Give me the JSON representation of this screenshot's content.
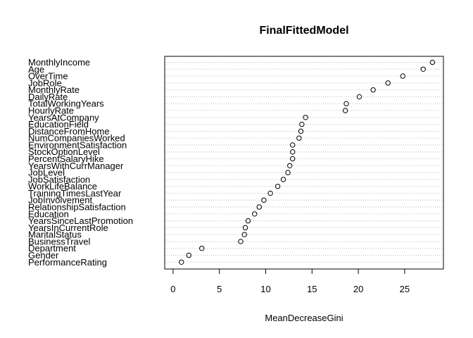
{
  "chart_data": {
    "type": "scatter",
    "title": "FinalFittedModel",
    "xlabel": "MeanDecreaseGini",
    "ylabel": "",
    "xlim": [
      0,
      28.5
    ],
    "xticks": [
      "0",
      "5",
      "10",
      "15",
      "20",
      "25"
    ],
    "grid": "dotted horizontal lines per variable",
    "point_style": "open circle",
    "variables": [
      "MonthlyIncome",
      "Age",
      "OverTime",
      "JobRole",
      "MonthlyRate",
      "DailyRate",
      "TotalWorkingYears",
      "HourlyRate",
      "YearsAtCompany",
      "EducationField",
      "DistanceFromHome",
      "NumCompaniesWorked",
      "EnvironmentSatisfaction",
      "StockOptionLevel",
      "PercentSalaryHike",
      "YearsWithCurrManager",
      "JobLevel",
      "JobSatisfaction",
      "WorkLifeBalance",
      "TrainingTimesLastYear",
      "JobInvolvement",
      "RelationshipSatisfaction",
      "Education",
      "YearsSinceLastPromotion",
      "YearsInCurrentRole",
      "MaritalStatus",
      "BusinessTravel",
      "Department",
      "Gender",
      "PerformanceRating"
    ],
    "values": [
      28.0,
      27.0,
      24.8,
      23.2,
      21.6,
      20.1,
      18.7,
      18.6,
      14.3,
      13.9,
      13.8,
      13.6,
      12.9,
      12.9,
      12.9,
      12.6,
      12.4,
      11.9,
      11.3,
      10.5,
      9.8,
      9.3,
      8.8,
      8.1,
      7.8,
      7.7,
      7.3,
      3.1,
      1.7,
      0.9
    ]
  }
}
